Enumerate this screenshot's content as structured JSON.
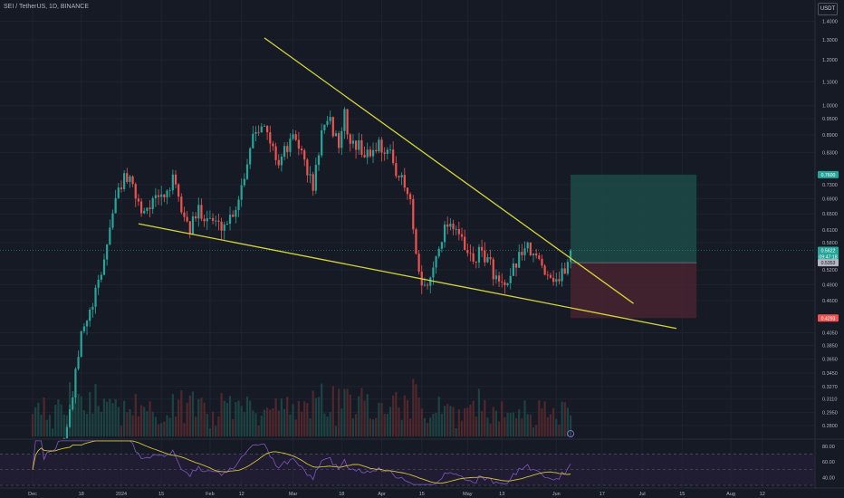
{
  "header": {
    "symbol_title": "SEI / TetherUS, 1D, BINANCE",
    "currency": "USDT"
  },
  "colors": {
    "background": "#161a25",
    "up": "#26a69a",
    "down": "#ef5350",
    "trendline": "#d4d43a",
    "target_zone": "#1b4d49",
    "stop_zone": "#4a2431",
    "rsi_line": "#7e57c2",
    "rsi_ma": "#d4c33a",
    "text": "#b2b5be"
  },
  "chart_data": {
    "type": "candlestick",
    "price_scale": "log",
    "price_ylim": [
      0.268,
      1.48
    ],
    "price_ticks": [
      "1.4000",
      "1.3000",
      "1.2000",
      "1.1000",
      "1.0000",
      "0.9500",
      "0.8900",
      "0.8300",
      "0.7300",
      "0.6900",
      "0.6500",
      "0.6100",
      "0.5800",
      "0.5200",
      "0.4900",
      "0.4600",
      "0.4050",
      "0.3850",
      "0.3650",
      "0.3450",
      "0.3270",
      "0.3110",
      "0.2950",
      "0.2800"
    ],
    "x_ticks": [
      {
        "label": "Dec",
        "date": "2023-12-01"
      },
      {
        "label": "18",
        "date": "2023-12-18"
      },
      {
        "label": "2024",
        "date": "2024-01-01"
      },
      {
        "label": "15",
        "date": "2024-01-15"
      },
      {
        "label": "Feb",
        "date": "2024-02-01"
      },
      {
        "label": "12",
        "date": "2024-02-12"
      },
      {
        "label": "Mar",
        "date": "2024-03-01"
      },
      {
        "label": "18",
        "date": "2024-03-18"
      },
      {
        "label": "Apr",
        "date": "2024-04-01"
      },
      {
        "label": "15",
        "date": "2024-04-15"
      },
      {
        "label": "May",
        "date": "2024-05-01"
      },
      {
        "label": "13",
        "date": "2024-05-13"
      },
      {
        "label": "Jun",
        "date": "2024-06-01"
      },
      {
        "label": "17",
        "date": "2024-06-17"
      },
      {
        "label": "Jul",
        "date": "2024-07-01"
      },
      {
        "label": "15",
        "date": "2024-07-15"
      },
      {
        "label": "Aug",
        "date": "2024-08-01"
      },
      {
        "label": "12",
        "date": "2024-08-12"
      }
    ],
    "trendlines": [
      {
        "name": "upper-resistance",
        "from": {
          "date": "2024-02-20",
          "price": 1.31
        },
        "to": {
          "date": "2024-06-28",
          "price": 0.455
        }
      },
      {
        "name": "lower-support",
        "from": {
          "date": "2024-01-07",
          "price": 0.625
        },
        "to": {
          "date": "2024-07-13",
          "price": 0.412
        }
      }
    ],
    "position": {
      "start_date": "2024-06-06",
      "end_date": "2024-07-20",
      "entry": 0.5353,
      "target": 0.76,
      "stop": 0.4293
    },
    "price_labels": [
      {
        "label": "0.7600",
        "price": 0.76,
        "color": "#26a69a"
      },
      {
        "label": "0.5622",
        "price": 0.5622,
        "color": "#26a69a"
      },
      {
        "label": "09:47:18",
        "price": 0.548,
        "color": "#26a69a"
      },
      {
        "label": "0.5353",
        "price": 0.5353,
        "color": "#b2b5be"
      },
      {
        "label": "0.4293",
        "price": 0.4293,
        "color": "#ef5350"
      }
    ],
    "current_price": 0.5622,
    "rsi": {
      "ylim": [
        30,
        88
      ],
      "ticks": [
        "80.00",
        "60.00",
        "40.00"
      ],
      "upper_band": 70,
      "lower_band": 30,
      "last": 53
    }
  }
}
